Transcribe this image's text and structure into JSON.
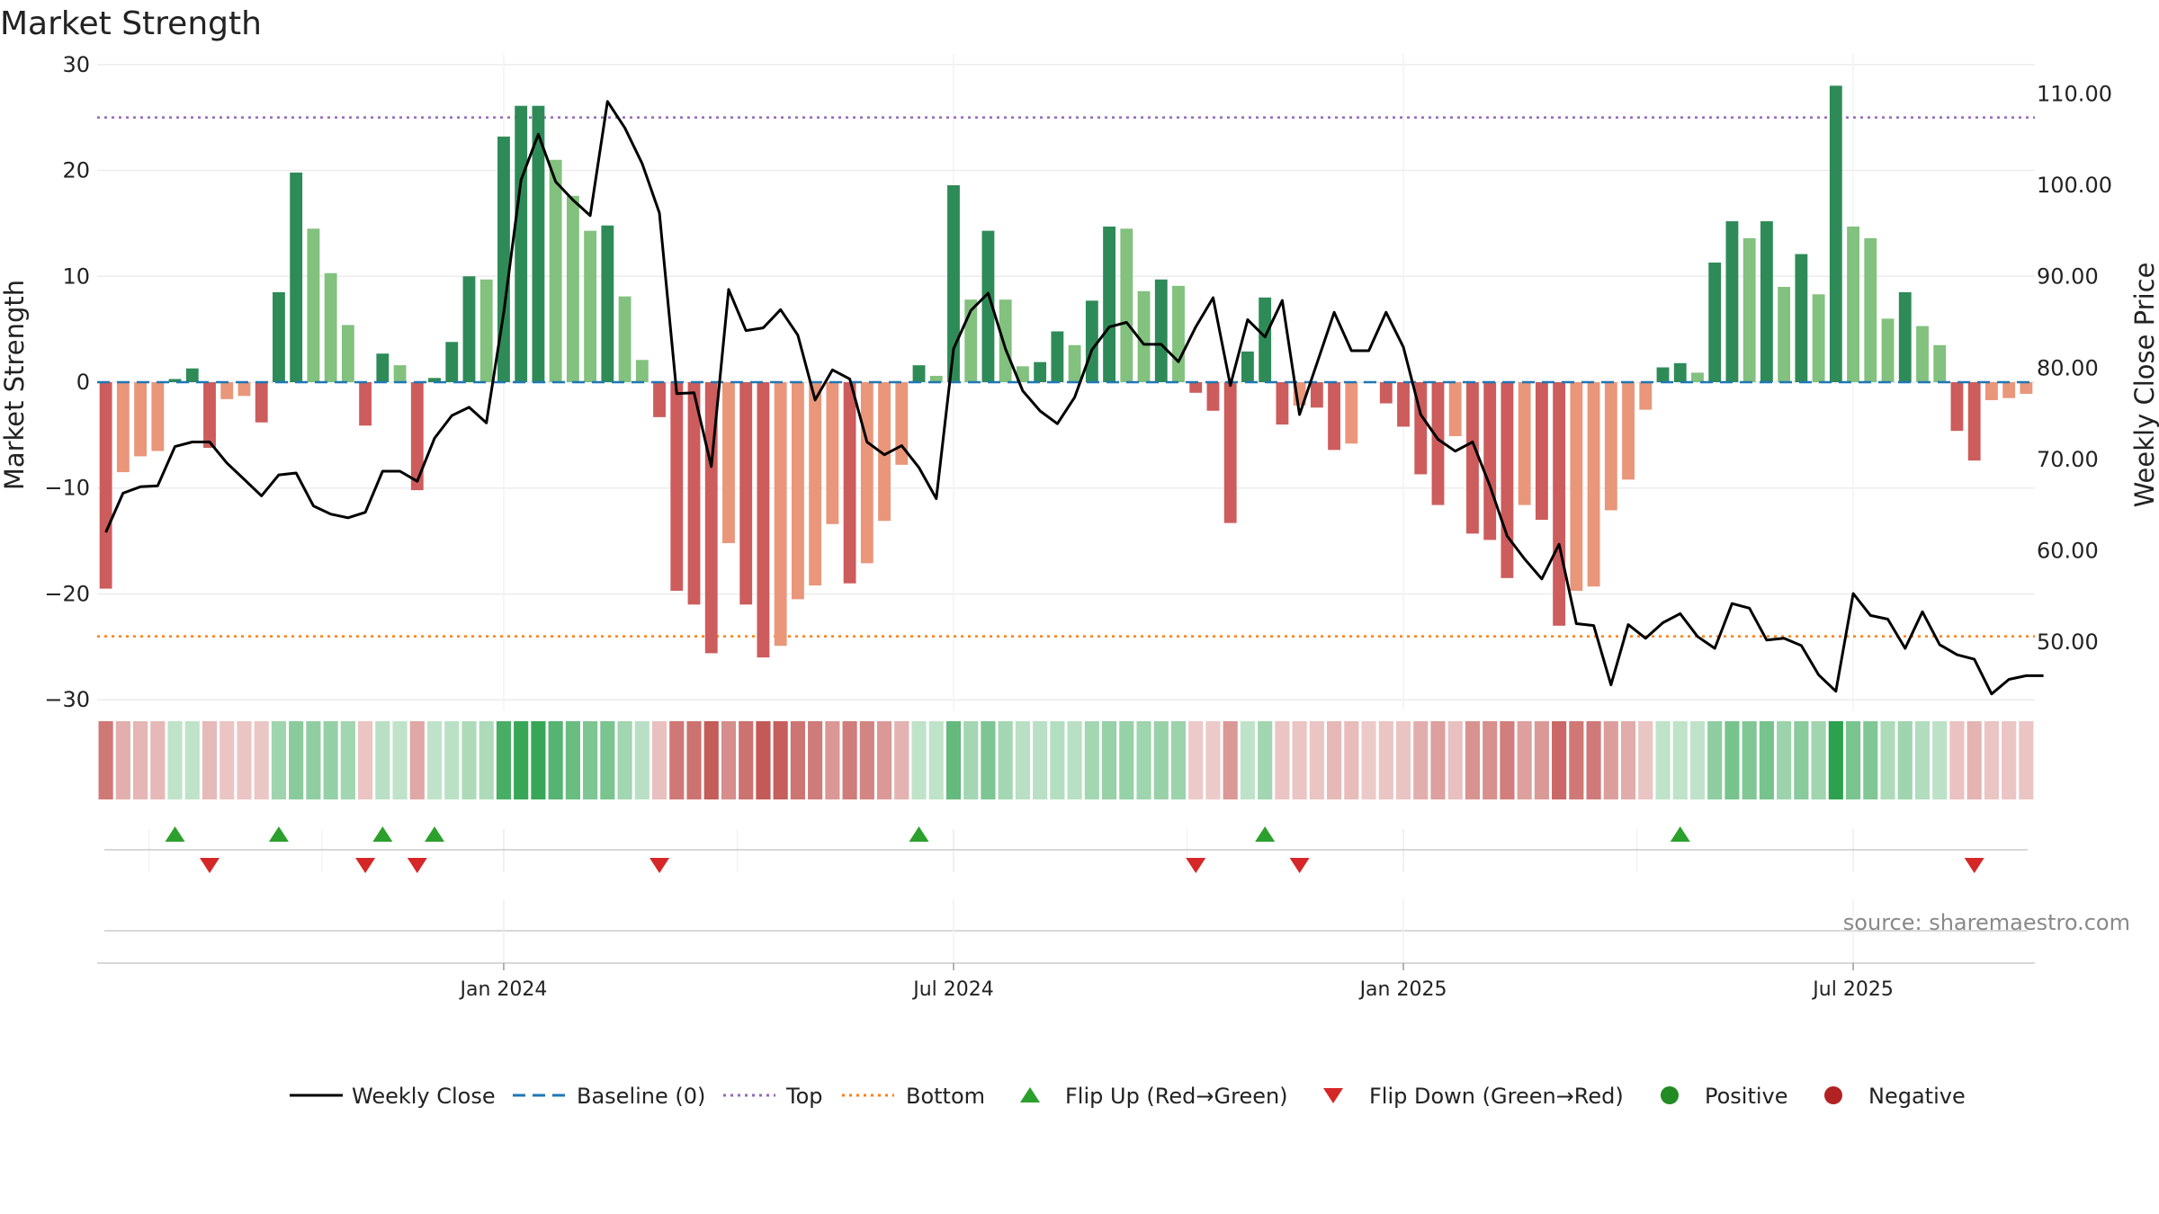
{
  "chart_data": {
    "title": "Market Strength",
    "source": "source: sharemaestro.com",
    "ylabel_left": "Market Strength",
    "ylabel_right": "Weekly Close Price",
    "left_axis": {
      "ylim": [
        -31,
        31
      ],
      "ticks": [
        30,
        20,
        10,
        0,
        -10,
        -20,
        -30
      ],
      "tick_labels": [
        "30",
        "20",
        "10",
        "0",
        "−10",
        "−20",
        "−30"
      ]
    },
    "right_axis": {
      "ylim": [
        42.5,
        114.4
      ],
      "ticks": [
        110,
        100,
        90,
        80,
        70,
        60,
        50
      ],
      "tick_labels": [
        "110.00",
        "100.00",
        "90.00",
        "80.00",
        "70.00",
        "60.00",
        "50.00"
      ]
    },
    "x_tick_labels": [
      {
        "index": 23,
        "label": "Jan 2024"
      },
      {
        "index": 49,
        "label": "Jul 2024"
      },
      {
        "index": 75,
        "label": "Jan 2025"
      },
      {
        "index": 101,
        "label": "Jul 2025"
      }
    ],
    "reference_lines": {
      "top": 25,
      "bottom": -24,
      "baseline": 0
    },
    "colors": {
      "price_line": "#000000",
      "baseline": "#1f77b4",
      "top": "#9467bd",
      "bottom": "#ff7f0e",
      "flip_up": "#2ca02c",
      "flip_down": "#d62728",
      "positive": "#228b22",
      "negative": "#b22222",
      "bar_pos_strong": "#2e8b57",
      "bar_pos_weak": "#82c17e",
      "bar_neg_strong": "#cd5c5c",
      "bar_neg_weak": "#e9967a"
    },
    "legend": [
      {
        "key": "weekly-close",
        "label": "Weekly Close"
      },
      {
        "key": "baseline",
        "label": "Baseline (0)"
      },
      {
        "key": "top",
        "label": "Top"
      },
      {
        "key": "bottom",
        "label": "Bottom"
      },
      {
        "key": "flip-up",
        "label": "Flip Up (Red→Green)"
      },
      {
        "key": "flip-down",
        "label": "Flip Down (Green→Red)"
      },
      {
        "key": "positive",
        "label": "Positive"
      },
      {
        "key": "negative",
        "label": "Negative"
      }
    ],
    "series": [
      {
        "name": "Market Strength",
        "type": "bar",
        "values": [
          -19.5,
          -8.5,
          -7,
          -6.5,
          0.3,
          1.3,
          -6.2,
          -1.6,
          -1.3,
          -3.8,
          8.5,
          19.8,
          14.5,
          10.3,
          5.4,
          -4.1,
          2.7,
          1.6,
          -10.2,
          0.4,
          3.8,
          10,
          9.7,
          23.2,
          26.1,
          26.1,
          21,
          17.6,
          14.3,
          14.8,
          8.1,
          2.1,
          -3.3,
          -19.7,
          -21,
          -25.6,
          -15.2,
          -21,
          -26,
          -24.9,
          -20.5,
          -19.2,
          -13.4,
          -19,
          -17.1,
          -13.1,
          -7.8,
          1.6,
          0.6,
          18.6,
          7.8,
          14.3,
          7.8,
          1.5,
          1.9,
          4.8,
          3.5,
          7.7,
          14.7,
          14.5,
          8.6,
          9.7,
          9.1,
          -1,
          -2.7,
          -13.3,
          2.9,
          8,
          -4,
          -2.2,
          -2.4,
          -6.4,
          -5.8,
          0,
          -2,
          -4.2,
          -8.7,
          -11.6,
          -5.1,
          -14.3,
          -14.9,
          -18.5,
          -11.6,
          -13,
          -23,
          -19.7,
          -19.3,
          -12.1,
          -9.2,
          -2.6,
          1.4,
          1.8,
          0.9,
          11.3,
          15.2,
          13.6,
          15.2,
          9,
          12.1,
          8.3,
          28,
          14.7,
          13.6,
          6,
          8.5,
          5.3,
          3.5,
          -4.6,
          -7.4,
          -1.7,
          -1.5,
          -1.1
        ]
      },
      {
        "name": "Weekly Close",
        "type": "line",
        "values": [
          62,
          66.3,
          67,
          67.1,
          71.4,
          71.9,
          71.9,
          69.6,
          67.8,
          66,
          68.3,
          68.5,
          64.9,
          64,
          63.6,
          64.2,
          68.7,
          68.7,
          67.6,
          72.3,
          74.8,
          75.7,
          74,
          86.1,
          100.6,
          105.6,
          100.4,
          98.4,
          96.7,
          109.2,
          106.3,
          102.4,
          97,
          77.2,
          77.3,
          69.2,
          88.6,
          84.1,
          84.4,
          86.4,
          83.6,
          76.5,
          79.8,
          78.8,
          71.9,
          70.5,
          71.5,
          69.1,
          65.7,
          82.1,
          86.3,
          88.2,
          82.1,
          77.5,
          75.3,
          73.9,
          76.8,
          82,
          84.5,
          85,
          82.6,
          82.6,
          80.7,
          84.5,
          87.7,
          78.1,
          85.3,
          83.4,
          87.4,
          74.9,
          80.5,
          86.1,
          81.9,
          81.9,
          86.1,
          82.3,
          74.9,
          72.2,
          70.9,
          71.9,
          67.1,
          61.6,
          59.1,
          56.9,
          60.7,
          52,
          51.8,
          45.3,
          51.9,
          50.4,
          52.1,
          53.1,
          50.6,
          49.3,
          54.2,
          53.7,
          50.2,
          50.4,
          49.6,
          46.4,
          44.6,
          55.3,
          52.9,
          52.5,
          49.3,
          53.3,
          49.7,
          48.6,
          48.1,
          44.3,
          45.9,
          46.3,
          46.3
        ]
      }
    ],
    "heat_strip": {
      "name": "Strength Heat Strip",
      "values": [
        -19.5,
        -8.5,
        -7,
        -6.5,
        3,
        3,
        -6.2,
        -4,
        -4,
        -3.8,
        8.5,
        12,
        11,
        10.3,
        8,
        -4.1,
        4,
        3,
        -10.2,
        3,
        3.8,
        6,
        6,
        23.2,
        26.1,
        26.1,
        21,
        17.6,
        14.3,
        14.8,
        8.1,
        4,
        -5,
        -19.7,
        -21,
        -25.6,
        -15.2,
        -21,
        -26,
        -24.9,
        -20.5,
        -19.2,
        -13.4,
        -19,
        -17.1,
        -13.1,
        -7.8,
        3,
        3,
        18.6,
        7.8,
        14.3,
        7.8,
        4,
        4,
        4.8,
        4,
        7.7,
        10,
        10,
        8.6,
        9.7,
        9.1,
        -3,
        -3,
        -13.3,
        3,
        8,
        -4,
        -4,
        -4,
        -6.4,
        -5.8,
        -3,
        -4,
        -4.2,
        -8.7,
        -11.6,
        -5.1,
        -14.3,
        -14.9,
        -18.5,
        -11.6,
        -13,
        -23,
        -19.7,
        -19.3,
        -12.1,
        -9.2,
        -4,
        3,
        3,
        3,
        11.3,
        15.2,
        13.6,
        15.2,
        9,
        12.1,
        8.3,
        28,
        14.7,
        13.6,
        6,
        8.5,
        5.3,
        3.5,
        -4.6,
        -7.4,
        -4,
        -4,
        -4
      ]
    },
    "flip_up_indices": [
      4,
      10,
      16,
      19,
      47,
      67,
      91
    ],
    "flip_down_indices": [
      6,
      15,
      18,
      32,
      63,
      69,
      108
    ]
  }
}
